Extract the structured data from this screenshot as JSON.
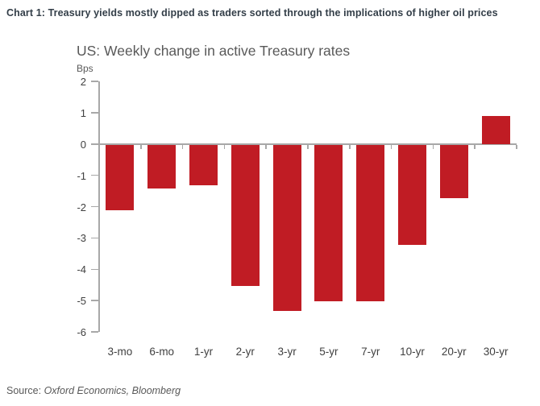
{
  "caption": "Chart 1: Treasury yields mostly dipped as traders sorted through the implications of higher oil prices",
  "chart": {
    "title": "US: Weekly change in active Treasury rates",
    "unit_label": "Bps"
  },
  "source": {
    "prefix": "Source: ",
    "names": "Oxford Economics, Bloomberg"
  },
  "colors": {
    "bar": "#c01c24",
    "axis": "#a8a8a8",
    "caption_text": "#333e48",
    "title_text": "#595959",
    "tick_text": "#404040"
  },
  "chart_data": {
    "type": "bar",
    "title": "US: Weekly change in active Treasury rates",
    "xlabel": "",
    "ylabel": "Bps",
    "categories": [
      "3-mo",
      "6-mo",
      "1-yr",
      "2-yr",
      "3-yr",
      "5-yr",
      "7-yr",
      "10-yr",
      "20-yr",
      "30-yr"
    ],
    "values": [
      -2.1,
      -1.4,
      -1.3,
      -4.5,
      -5.3,
      -5.0,
      -5.0,
      -3.2,
      -1.7,
      0.9
    ],
    "ylim": [
      -6,
      2
    ],
    "yticks": [
      2,
      1,
      0,
      -1,
      -2,
      -3,
      -4,
      -5,
      -6
    ],
    "grid": false,
    "legend": false,
    "bar_color": "#c01c24"
  }
}
